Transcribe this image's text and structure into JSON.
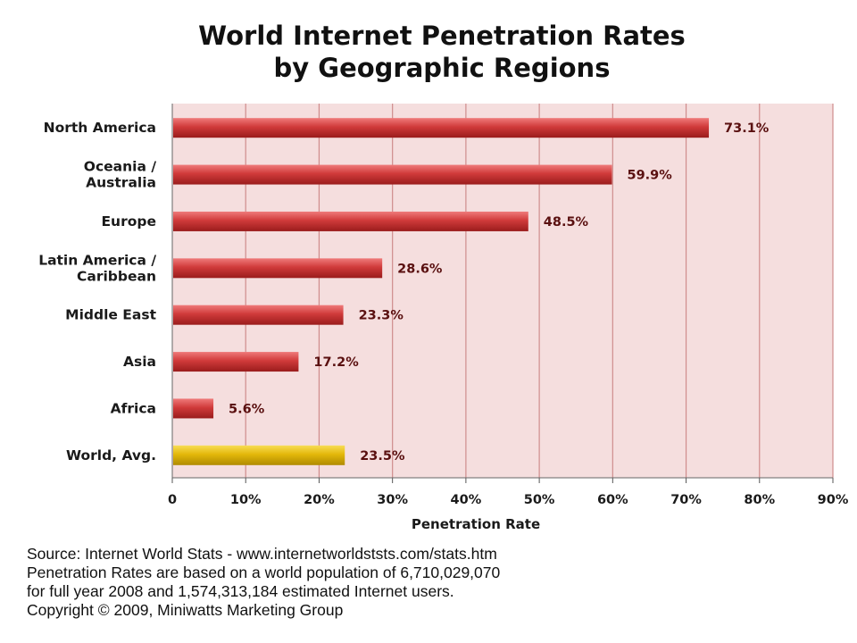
{
  "chart_data": {
    "type": "bar",
    "orientation": "horizontal",
    "title": "World Internet Penetration Rates",
    "subtitle": "by Geographic Regions",
    "categories": [
      [
        "North America"
      ],
      [
        "Oceania  /",
        "Australia"
      ],
      [
        "Europe"
      ],
      [
        "Latin America /",
        "Caribbean"
      ],
      [
        "Middle East"
      ],
      [
        "Asia"
      ],
      [
        "Africa"
      ],
      [
        "World, Avg."
      ]
    ],
    "values": [
      73.1,
      59.9,
      48.5,
      28.6,
      23.3,
      17.2,
      5.6,
      23.5
    ],
    "value_labels": [
      "73.1%",
      "59.9%",
      "48.5%",
      "28.6%",
      "23.3%",
      "17.2%",
      "5.6%",
      "23.5%"
    ],
    "xlabel": "Penetration Rate",
    "ylabel": "",
    "xlim": [
      0,
      90
    ],
    "ticks": [
      0,
      10,
      20,
      30,
      40,
      50,
      60,
      70,
      80,
      90
    ],
    "tick_labels": [
      "0",
      "10%",
      "20%",
      "30%",
      "40%",
      "50%",
      "60%",
      "70%",
      "80%",
      "90%"
    ],
    "grid": true,
    "legend": "none",
    "colors": {
      "bar": "#c83232",
      "highlight_bar": "#e3b80a",
      "plot_background": "#f5dede",
      "gridline": "#cf8c8c"
    },
    "highlight_index": 7
  },
  "source_notes": [
    "Source: Internet World Stats - www.internetworldststs.com/stats.htm",
    "Penetration Rates are based on a world population of 6,710,029,070",
    "for full year 2008 and 1,574,313,184 estimated Internet users.",
    "Copyright © 2009, Miniwatts Marketing Group"
  ]
}
